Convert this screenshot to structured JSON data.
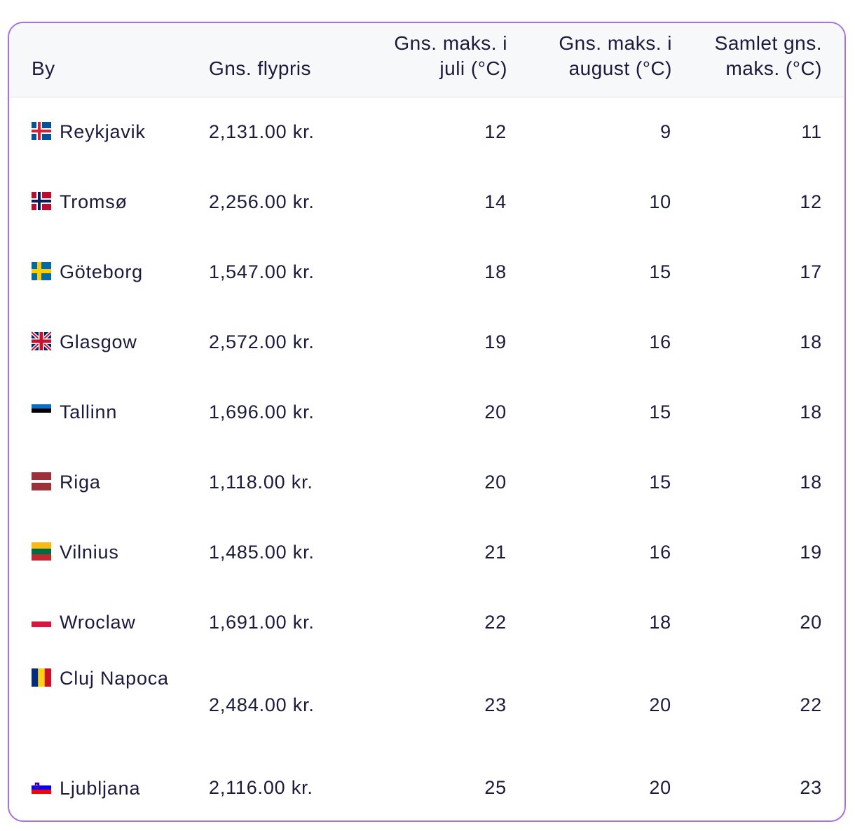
{
  "table": {
    "headers": {
      "city": "By",
      "price": "Gns. flypris",
      "july_line1": "Gns. maks. i",
      "july_line2": "juli (°C)",
      "august_line1": "Gns. maks. i",
      "august_line2": "august (°C)",
      "overall_line1": "Samlet gns.",
      "overall_line2": "maks. (°C)"
    },
    "rows": [
      {
        "city": "Reykjavik",
        "flag": "iceland-flag-icon",
        "price": "2,131.00 kr.",
        "july": "12",
        "august": "9",
        "overall": "11"
      },
      {
        "city": "Tromsø",
        "flag": "norway-flag-icon",
        "price": "2,256.00 kr.",
        "july": "14",
        "august": "10",
        "overall": "12"
      },
      {
        "city": "Göteborg",
        "flag": "sweden-flag-icon",
        "price": "1,547.00 kr.",
        "july": "18",
        "august": "15",
        "overall": "17"
      },
      {
        "city": "Glasgow",
        "flag": "uk-flag-icon",
        "price": "2,572.00 kr.",
        "july": "19",
        "august": "16",
        "overall": "18"
      },
      {
        "city": "Tallinn",
        "flag": "estonia-flag-icon",
        "price": "1,696.00 kr.",
        "july": "20",
        "august": "15",
        "overall": "18"
      },
      {
        "city": "Riga",
        "flag": "latvia-flag-icon",
        "price": "1,118.00 kr.",
        "july": "20",
        "august": "15",
        "overall": "18"
      },
      {
        "city": "Vilnius",
        "flag": "lithuania-flag-icon",
        "price": "1,485.00 kr.",
        "july": "21",
        "august": "16",
        "overall": "19"
      },
      {
        "city": "Wroclaw",
        "flag": "poland-flag-icon",
        "price": "1,691.00 kr.",
        "july": "22",
        "august": "18",
        "overall": "20"
      },
      {
        "city": "Cluj Napoca",
        "flag": "romania-flag-icon",
        "price": "2,484.00 kr.",
        "july": "23",
        "august": "20",
        "overall": "22"
      },
      {
        "city": "Ljubljana",
        "flag": "slovenia-flag-icon",
        "price": "2,116.00 kr.",
        "july": "25",
        "august": "20",
        "overall": "23"
      }
    ]
  },
  "colors": {
    "border": "#a96fe0",
    "header_bg": "#f7f8fa",
    "text": "#1b1a3d"
  }
}
